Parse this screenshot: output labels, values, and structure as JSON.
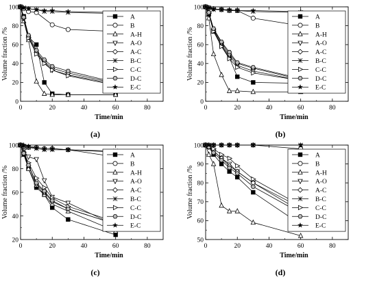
{
  "chart_data": [
    {
      "type": "line",
      "panel_label": "(a)",
      "xlabel": "Time/min",
      "ylabel": "Volume fraction /%",
      "xlim": [
        0,
        90
      ],
      "ylim": [
        0,
        100
      ],
      "xticks": [
        0,
        20,
        40,
        60,
        80
      ],
      "yticks": [
        0,
        20,
        40,
        60,
        80,
        100
      ],
      "legend": "top-right",
      "series": [
        {
          "name": "A",
          "marker": "square-filled",
          "x": [
            0,
            2,
            5,
            10,
            15,
            20,
            30,
            60
          ],
          "y": [
            100,
            90,
            68,
            60,
            20,
            8,
            7,
            7
          ]
        },
        {
          "name": "B",
          "marker": "circle-open",
          "x": [
            0,
            2,
            5,
            10,
            20,
            30,
            60
          ],
          "y": [
            100,
            98,
            95,
            94,
            81,
            76,
            74
          ]
        },
        {
          "name": "A-H",
          "marker": "triangle-open",
          "x": [
            0,
            2,
            5,
            10,
            15,
            20,
            30,
            60
          ],
          "y": [
            100,
            85,
            65,
            21,
            8,
            7,
            7,
            7
          ]
        },
        {
          "name": "A-O",
          "marker": "tri-down-open",
          "x": [
            0,
            2,
            5,
            10,
            15,
            20,
            30,
            60
          ],
          "y": [
            100,
            88,
            68,
            52,
            41,
            33,
            28,
            18
          ]
        },
        {
          "name": "A-C",
          "marker": "diamond-open",
          "x": [
            0,
            2,
            5,
            10,
            15,
            20,
            30,
            60
          ],
          "y": [
            100,
            88,
            68,
            52,
            42,
            35,
            30,
            19
          ]
        },
        {
          "name": "B-C",
          "marker": "x",
          "x": [
            0,
            2,
            5,
            10,
            15,
            20,
            30,
            60
          ],
          "y": [
            100,
            99,
            98,
            97,
            95,
            95,
            94,
            93
          ]
        },
        {
          "name": "C-C",
          "marker": "tri-right-open",
          "x": [
            0,
            2,
            5,
            10,
            15,
            20,
            30,
            60
          ],
          "y": [
            100,
            88,
            67,
            50,
            40,
            33,
            27,
            17
          ]
        },
        {
          "name": "D-C",
          "marker": "hex-open",
          "x": [
            0,
            2,
            5,
            10,
            15,
            20,
            30,
            60
          ],
          "y": [
            100,
            89,
            70,
            54,
            44,
            37,
            32,
            20
          ]
        },
        {
          "name": "E-C",
          "marker": "star",
          "x": [
            0,
            2,
            5,
            10,
            15,
            20,
            30,
            60
          ],
          "y": [
            100,
            99,
            98,
            97,
            96,
            96,
            95,
            94
          ]
        }
      ]
    },
    {
      "type": "line",
      "panel_label": "(b)",
      "xlabel": "Time/min",
      "ylabel": "Volume fraction /%",
      "xlim": [
        0,
        90
      ],
      "ylim": [
        0,
        100
      ],
      "xticks": [
        0,
        20,
        40,
        60,
        80
      ],
      "yticks": [
        0,
        20,
        40,
        60,
        80,
        100
      ],
      "legend": "top-right",
      "series": [
        {
          "name": "A",
          "marker": "square-filled",
          "x": [
            0,
            2,
            5,
            10,
            15,
            20,
            30,
            60
          ],
          "y": [
            100,
            92,
            74,
            59,
            46,
            26,
            20,
            19
          ]
        },
        {
          "name": "B",
          "marker": "circle-open",
          "x": [
            0,
            2,
            5,
            10,
            15,
            20,
            30,
            60
          ],
          "y": [
            100,
            99,
            98,
            97,
            96,
            96,
            88,
            80
          ]
        },
        {
          "name": "A-H",
          "marker": "triangle-open",
          "x": [
            0,
            2,
            5,
            10,
            15,
            20,
            30,
            60
          ],
          "y": [
            100,
            88,
            50,
            28,
            11,
            11,
            10,
            10
          ]
        },
        {
          "name": "A-O",
          "marker": "tri-down-open",
          "x": [
            0,
            2,
            5,
            10,
            15,
            20,
            30,
            60
          ],
          "y": [
            100,
            93,
            75,
            60,
            48,
            38,
            32,
            22
          ]
        },
        {
          "name": "A-C",
          "marker": "diamond-open",
          "x": [
            0,
            2,
            5,
            10,
            15,
            20,
            30,
            60
          ],
          "y": [
            100,
            94,
            76,
            62,
            50,
            40,
            35,
            23
          ]
        },
        {
          "name": "B-C",
          "marker": "x",
          "x": [
            0,
            2,
            5,
            10,
            15,
            20,
            30,
            60
          ],
          "y": [
            100,
            99,
            97,
            97,
            96,
            96,
            95,
            94
          ]
        },
        {
          "name": "C-C",
          "marker": "tri-right-open",
          "x": [
            0,
            2,
            5,
            10,
            15,
            20,
            30,
            60
          ],
          "y": [
            100,
            93,
            74,
            58,
            45,
            36,
            30,
            22
          ]
        },
        {
          "name": "D-C",
          "marker": "hex-open",
          "x": [
            0,
            2,
            5,
            10,
            15,
            20,
            30,
            60
          ],
          "y": [
            100,
            94,
            77,
            63,
            52,
            41,
            36,
            24
          ]
        },
        {
          "name": "E-C",
          "marker": "star",
          "x": [
            0,
            2,
            5,
            10,
            15,
            20,
            30,
            60
          ],
          "y": [
            100,
            99,
            98,
            97,
            97,
            96,
            96,
            95
          ]
        }
      ]
    },
    {
      "type": "line",
      "panel_label": "(c)",
      "xlabel": "Time/min",
      "ylabel": "Volume fraction /%",
      "xlim": [
        0,
        90
      ],
      "ylim": [
        20,
        100
      ],
      "xticks": [
        0,
        20,
        40,
        60,
        80
      ],
      "yticks": [
        20,
        40,
        60,
        80,
        100
      ],
      "legend": "top-right",
      "series": [
        {
          "name": "A",
          "marker": "square-filled",
          "x": [
            0,
            2,
            5,
            10,
            15,
            20,
            30,
            60
          ],
          "y": [
            100,
            92,
            80,
            64,
            58,
            47,
            37,
            24
          ]
        },
        {
          "name": "B",
          "marker": "circle-open",
          "x": [
            0,
            2,
            5,
            10,
            15,
            20,
            30,
            60
          ],
          "y": [
            100,
            99,
            98,
            98,
            97,
            97,
            96,
            90
          ]
        },
        {
          "name": "A-H",
          "marker": "triangle-open",
          "x": [
            0,
            2,
            5,
            10,
            15,
            20,
            30,
            60
          ],
          "y": [
            100,
            94,
            80,
            66,
            58,
            50,
            44,
            27
          ]
        },
        {
          "name": "A-O",
          "marker": "tri-down-open",
          "x": [
            0,
            2,
            5,
            10,
            15,
            20,
            30,
            60
          ],
          "y": [
            100,
            95,
            90,
            88,
            70,
            56,
            51,
            32
          ]
        },
        {
          "name": "A-C",
          "marker": "diamond-open",
          "x": [
            0,
            2,
            5,
            10,
            15,
            20,
            30,
            60
          ],
          "y": [
            100,
            94,
            83,
            67,
            60,
            52,
            46,
            33
          ]
        },
        {
          "name": "B-C",
          "marker": "x",
          "x": [
            0,
            2,
            5,
            10,
            15,
            20,
            30,
            60
          ],
          "y": [
            100,
            99,
            98,
            97,
            96,
            96,
            96,
            95
          ]
        },
        {
          "name": "C-C",
          "marker": "tri-right-open",
          "x": [
            0,
            2,
            5,
            10,
            15,
            20,
            30,
            60
          ],
          "y": [
            100,
            94,
            85,
            72,
            64,
            55,
            48,
            35
          ]
        },
        {
          "name": "D-C",
          "marker": "hex-open",
          "x": [
            0,
            2,
            5,
            10,
            15,
            20,
            30,
            60
          ],
          "y": [
            100,
            93,
            83,
            68,
            61,
            53,
            46,
            33
          ]
        },
        {
          "name": "E-C",
          "marker": "star",
          "x": [
            0,
            2,
            5,
            10,
            15,
            20,
            30,
            60
          ],
          "y": [
            100,
            100,
            99,
            98,
            97,
            97,
            96,
            94
          ]
        }
      ]
    },
    {
      "type": "line",
      "panel_label": "(d)",
      "xlabel": "Time/min",
      "ylabel": "Volume fraction /%",
      "xlim": [
        0,
        90
      ],
      "ylim": [
        50,
        100
      ],
      "xticks": [
        0,
        20,
        40,
        60,
        80
      ],
      "yticks": [
        50,
        60,
        70,
        80,
        90,
        100
      ],
      "legend": "top-right",
      "series": [
        {
          "name": "A",
          "marker": "square-filled",
          "x": [
            0,
            2,
            5,
            10,
            15,
            20,
            30,
            60
          ],
          "y": [
            100,
            99,
            95,
            90,
            86,
            83,
            75,
            58
          ]
        },
        {
          "name": "B",
          "marker": "circle-open",
          "x": [
            0,
            2,
            5,
            10,
            15,
            20,
            30,
            60
          ],
          "y": [
            100,
            100,
            100,
            100,
            100,
            100,
            100,
            98
          ]
        },
        {
          "name": "A-H",
          "marker": "triangle-open",
          "x": [
            0,
            2,
            5,
            10,
            15,
            20,
            30,
            60
          ],
          "y": [
            100,
            95,
            90,
            68,
            65,
            65,
            59,
            52
          ]
        },
        {
          "name": "A-O",
          "marker": "tri-down-open",
          "x": [
            0,
            2,
            5,
            10,
            15,
            20,
            30,
            60
          ],
          "y": [
            100,
            99,
            97,
            93,
            90,
            86,
            80,
            65
          ]
        },
        {
          "name": "A-C",
          "marker": "diamond-open",
          "x": [
            0,
            2,
            5,
            10,
            15,
            20,
            30,
            60
          ],
          "y": [
            100,
            99,
            97,
            93,
            89,
            86,
            80,
            67
          ]
        },
        {
          "name": "B-C",
          "marker": "x",
          "x": [
            0,
            2,
            5,
            10,
            15,
            20,
            30,
            60
          ],
          "y": [
            100,
            100,
            100,
            100,
            100,
            100,
            100,
            100
          ]
        },
        {
          "name": "C-C",
          "marker": "tri-right-open",
          "x": [
            0,
            2,
            5,
            10,
            15,
            20,
            30,
            60
          ],
          "y": [
            100,
            99,
            98,
            95,
            93,
            89,
            82,
            68
          ]
        },
        {
          "name": "D-C",
          "marker": "hex-open",
          "x": [
            0,
            2,
            5,
            10,
            15,
            20,
            30,
            60
          ],
          "y": [
            100,
            99,
            96,
            92,
            88,
            85,
            78,
            64
          ]
        },
        {
          "name": "E-C",
          "marker": "star",
          "x": [
            0,
            2,
            5,
            10,
            15,
            20,
            30,
            60
          ],
          "y": [
            100,
            100,
            100,
            100,
            100,
            100,
            100,
            100
          ]
        }
      ]
    }
  ]
}
